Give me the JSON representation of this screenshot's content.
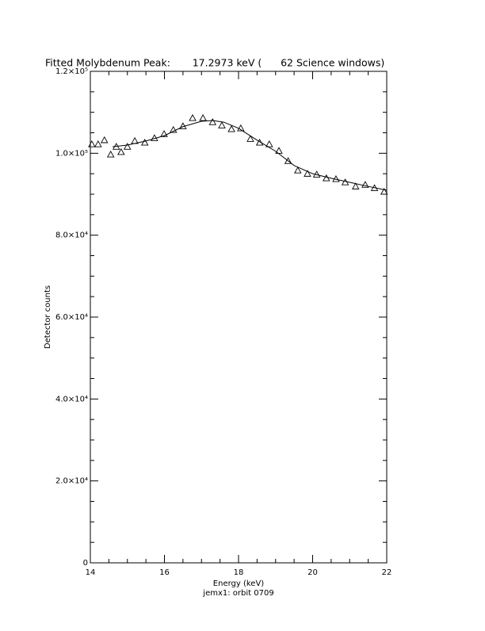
{
  "chart_data": {
    "type": "scatter",
    "title": "Fitted Molybdenum Peak:       17.2973 keV (      62 Science windows)",
    "x_label": "Energy (keV)",
    "subtitle": "jemx1: orbit 0709",
    "y_label": "Detector counts",
    "xlim": [
      14,
      22
    ],
    "xticks": [
      14,
      16,
      18,
      20,
      22
    ],
    "ylim": [
      0,
      120000
    ],
    "yticks": [
      0,
      {
        "value": 20000,
        "label": "2.0×10⁴"
      },
      {
        "value": 40000,
        "label": "4.0×10⁴"
      },
      {
        "value": 60000,
        "label": "6.0×10⁴"
      },
      {
        "value": 80000,
        "label": "8.0×10⁴"
      },
      {
        "value": 100000,
        "label": "1.0×10⁵"
      },
      {
        "value": 120000,
        "label": "1.2×10⁵"
      }
    ],
    "color": "#000000",
    "x": [
      14.04,
      14.21,
      14.38,
      14.55,
      14.7,
      14.83,
      15.0,
      15.2,
      15.47,
      15.73,
      15.99,
      16.24,
      16.5,
      16.76,
      17.04,
      17.3,
      17.55,
      17.81,
      18.06,
      18.32,
      18.57,
      18.83,
      19.09,
      19.34,
      19.6,
      19.86,
      20.11,
      20.37,
      20.63,
      20.88,
      21.16,
      21.42,
      21.67,
      21.93
    ],
    "values": [
      102200,
      102200,
      103200,
      99700,
      101600,
      100300,
      101600,
      103000,
      102600,
      103700,
      104700,
      105700,
      106600,
      108600,
      108600,
      107600,
      106800,
      105900,
      106100,
      103500,
      102600,
      102200,
      100600,
      98100,
      95800,
      95000,
      94800,
      93900,
      93700,
      92900,
      91900,
      92300,
      91500,
      90600
    ],
    "fit": {
      "x": [
        14.6,
        15.0,
        15.5,
        16.0,
        16.5,
        17.0,
        17.3,
        17.6,
        18.0,
        18.5,
        19.0,
        19.5,
        20.0,
        20.5,
        21.0,
        21.5,
        22.0
      ],
      "values": [
        101600,
        102000,
        103000,
        104300,
        106500,
        107800,
        108000,
        107600,
        106100,
        103200,
        100500,
        97000,
        95000,
        93900,
        92900,
        91900,
        91000
      ]
    }
  }
}
